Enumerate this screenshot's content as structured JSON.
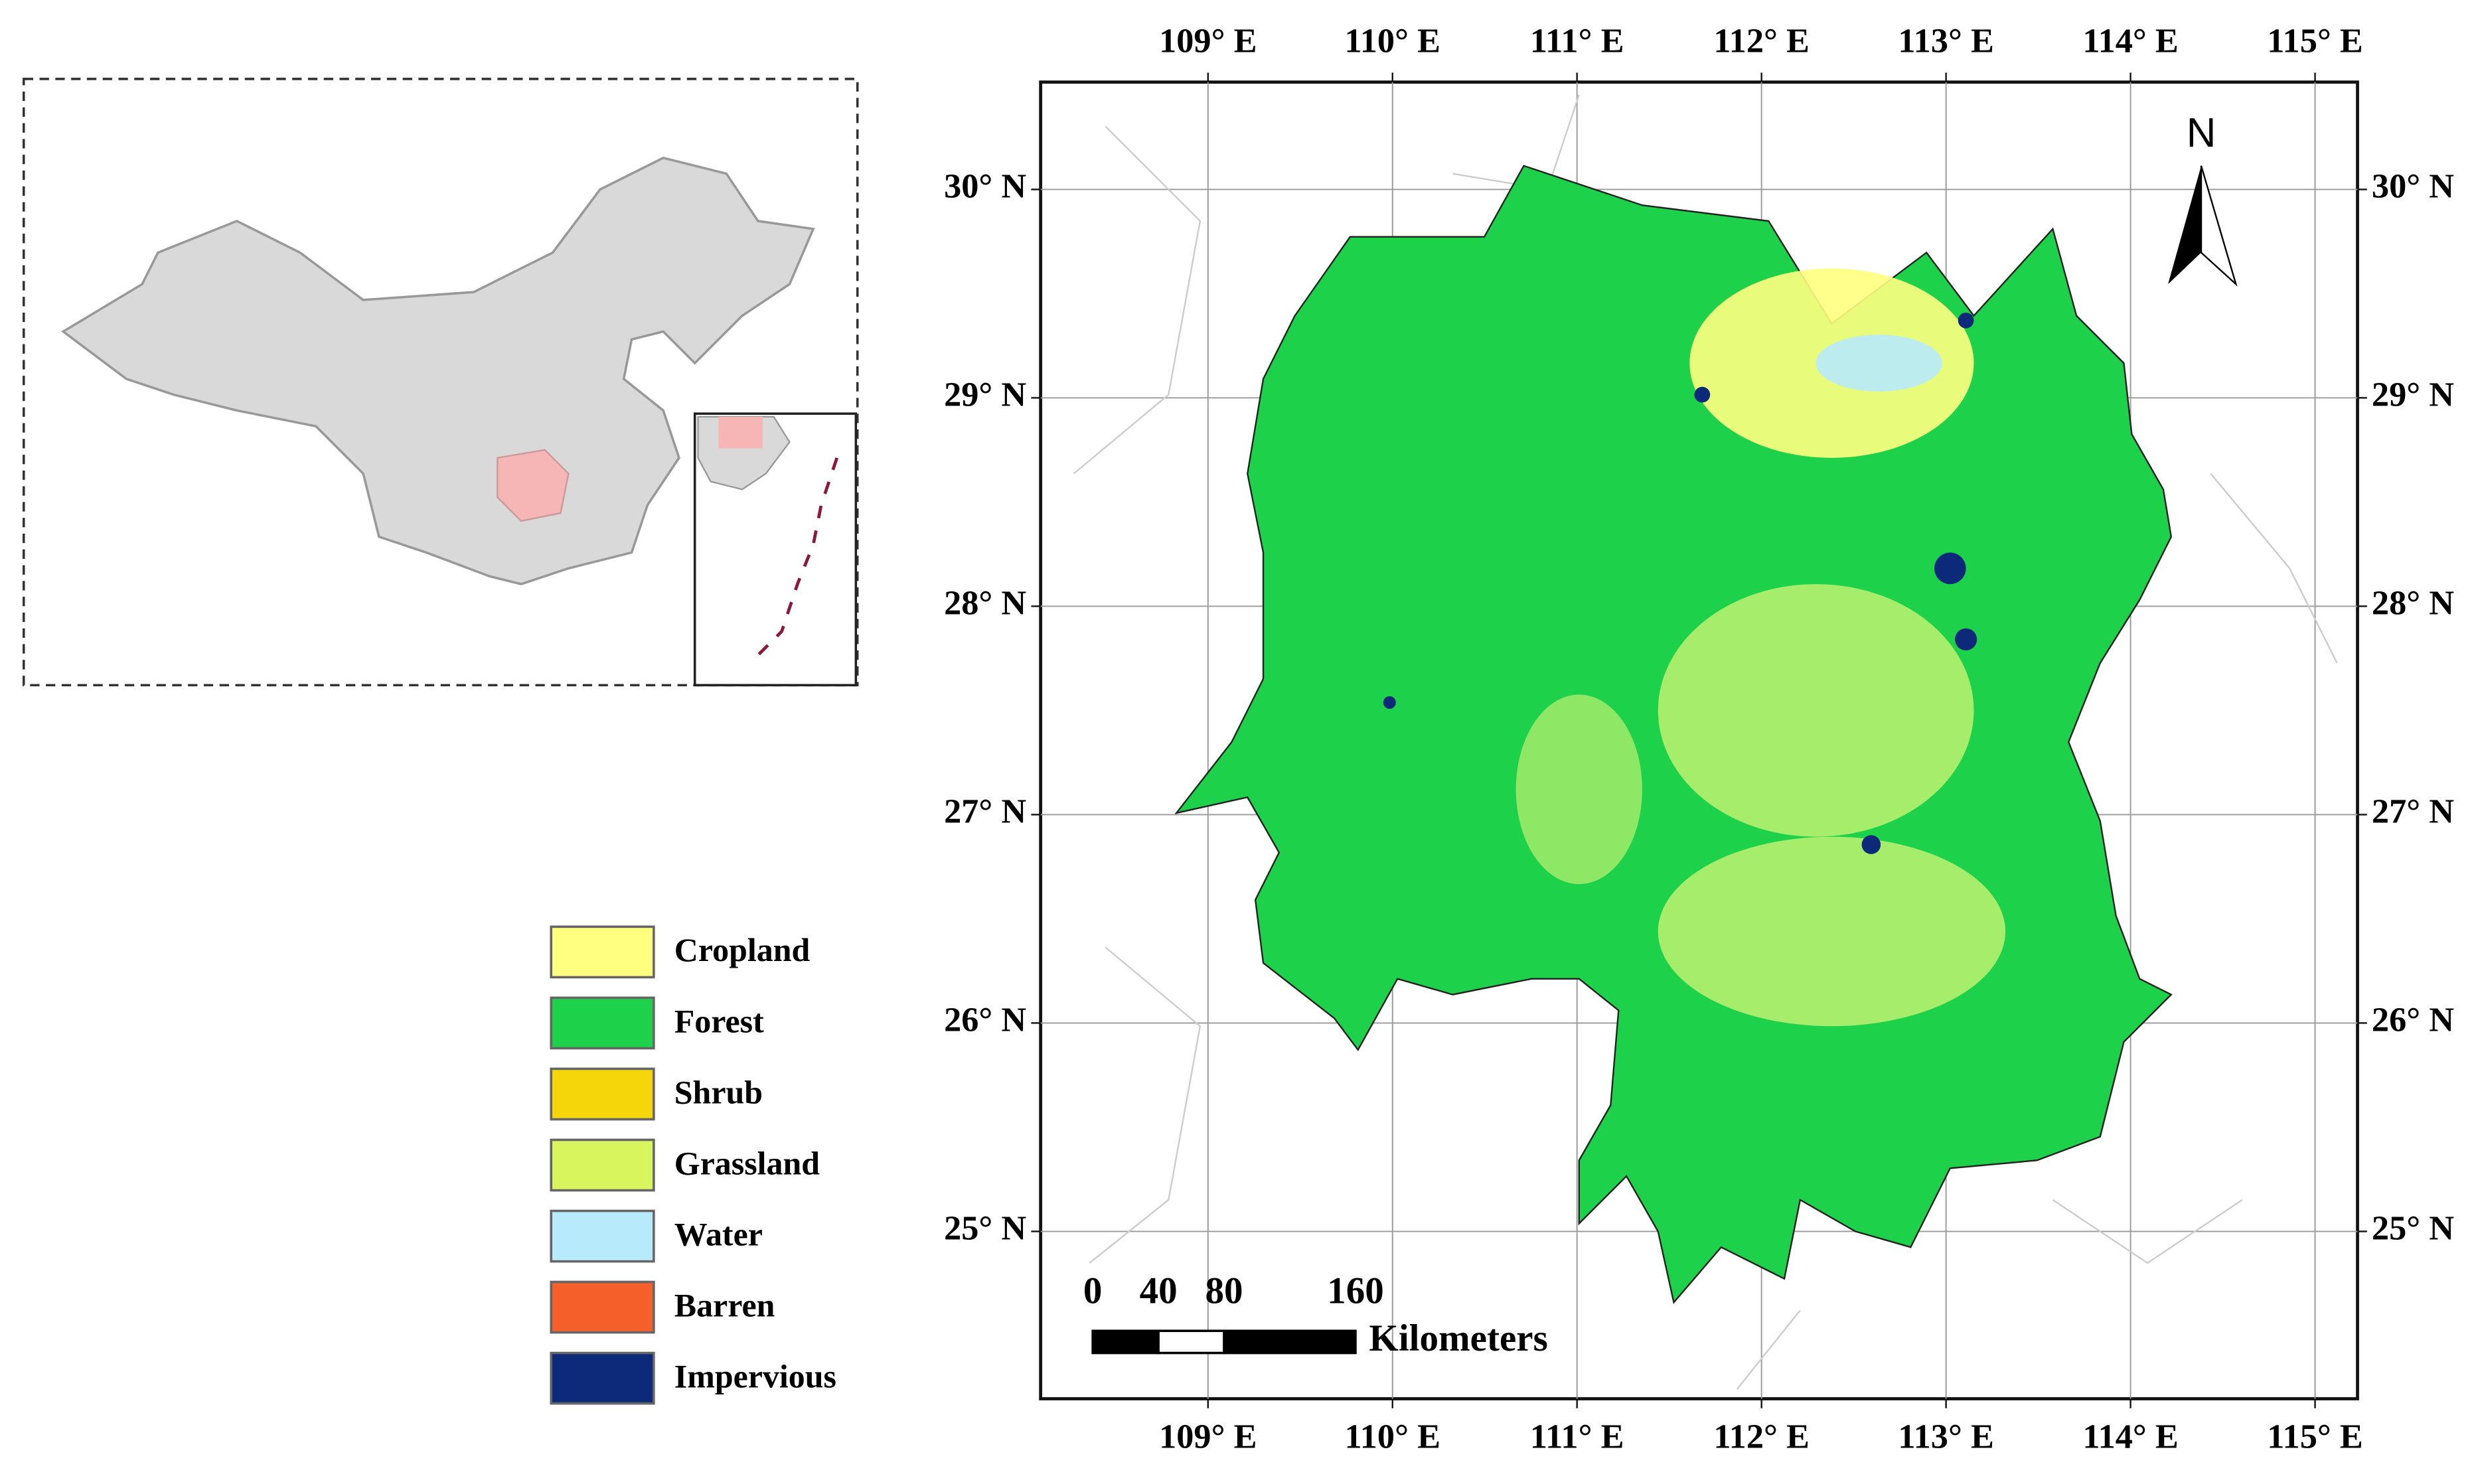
{
  "map": {
    "longitude_ticks": [
      {
        "value": 109,
        "label": "109° E"
      },
      {
        "value": 110,
        "label": "110° E"
      },
      {
        "value": 111,
        "label": "111° E"
      },
      {
        "value": 112,
        "label": "112° E"
      },
      {
        "value": 113,
        "label": "113° E"
      },
      {
        "value": 114,
        "label": "114° E"
      },
      {
        "value": 115,
        "label": "115° E"
      }
    ],
    "latitude_ticks": [
      {
        "value": 30,
        "label": "30° N"
      },
      {
        "value": 29,
        "label": "29° N"
      },
      {
        "value": 28,
        "label": "28° N"
      },
      {
        "value": 27,
        "label": "27° N"
      },
      {
        "value": 26,
        "label": "26° N"
      },
      {
        "value": 25,
        "label": "25° N"
      }
    ],
    "north_arrow": "N",
    "scale_bar": {
      "ticks": [
        0,
        40,
        80,
        160
      ],
      "unit": "Kilometers"
    }
  },
  "legend": {
    "items": [
      {
        "label": "Cropland",
        "color": "#ffff80"
      },
      {
        "label": "Forest",
        "color": "#1ed14a"
      },
      {
        "label": "Shrub",
        "color": "#f5d60a"
      },
      {
        "label": "Grassland",
        "color": "#d9f55e"
      },
      {
        "label": "Water",
        "color": "#b7eafa"
      },
      {
        "label": "Barren",
        "color": "#f5602a"
      },
      {
        "label": "Impervious",
        "color": "#0d2a7a"
      }
    ]
  }
}
